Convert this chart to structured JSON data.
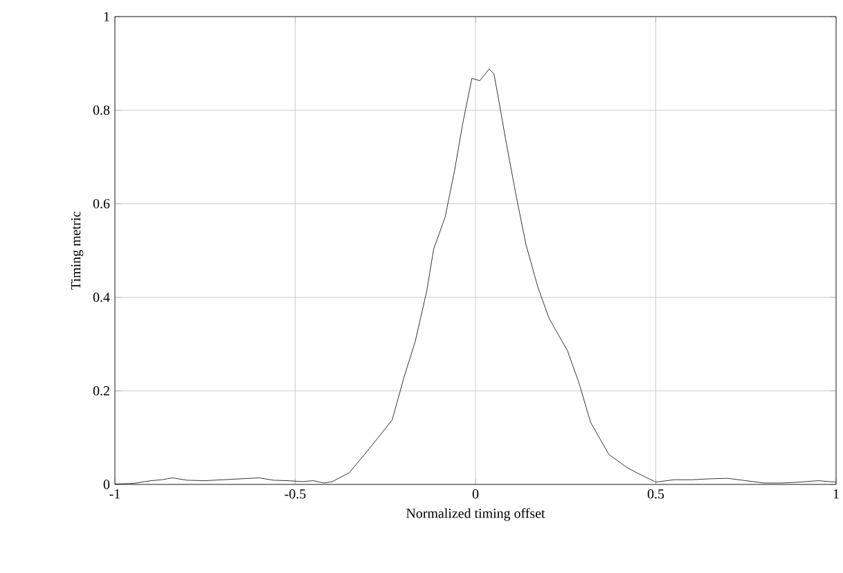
{
  "chart_data": {
    "type": "line",
    "xlabel": "Normalized timing offset",
    "ylabel": "Timing metric",
    "xlim": [
      -1,
      1
    ],
    "ylim": [
      0,
      1
    ],
    "xticks": [
      -1,
      -0.5,
      0,
      0.5,
      1
    ],
    "yticks": [
      0,
      0.2,
      0.4,
      0.6,
      0.8,
      1
    ],
    "grid": true,
    "marker": "none",
    "line_style": "solid",
    "series": [
      {
        "color": "#000000",
        "x": [
          -1,
          -0.95,
          -0.9,
          -0.87,
          -0.84,
          -0.8,
          -0.75,
          -0.7,
          -0.65,
          -0.6,
          -0.56,
          -0.52,
          -0.48,
          -0.45,
          -0.42,
          -0.397,
          -0.35,
          -0.308,
          -0.27,
          -0.231,
          -0.199,
          -0.167,
          -0.135,
          -0.116,
          -0.084,
          -0.058,
          -0.036,
          -0.01,
          0.012,
          0.038,
          0.051,
          0.063,
          0.083,
          0.114,
          0.14,
          0.172,
          0.204,
          0.255,
          0.287,
          0.319,
          0.37,
          0.422,
          0.46,
          0.5,
          0.55,
          0.6,
          0.65,
          0.7,
          0.75,
          0.8,
          0.85,
          0.9,
          0.95,
          1
        ],
        "values": [
          0.001,
          0.002,
          0.008,
          0.01,
          0.014,
          0.009,
          0.008,
          0.01,
          0.012,
          0.014,
          0.009,
          0.008,
          0.006,
          0.008,
          0.003,
          0.006,
          0.025,
          0.064,
          0.1,
          0.138,
          0.227,
          0.306,
          0.414,
          0.503,
          0.572,
          0.671,
          0.769,
          0.868,
          0.863,
          0.888,
          0.878,
          0.828,
          0.74,
          0.612,
          0.513,
          0.424,
          0.355,
          0.286,
          0.217,
          0.133,
          0.064,
          0.035,
          0.02,
          0.005,
          0.01,
          0.01,
          0.012,
          0.013,
          0.008,
          0.003,
          0.003,
          0.005,
          0.008,
          0.005
        ]
      }
    ]
  }
}
